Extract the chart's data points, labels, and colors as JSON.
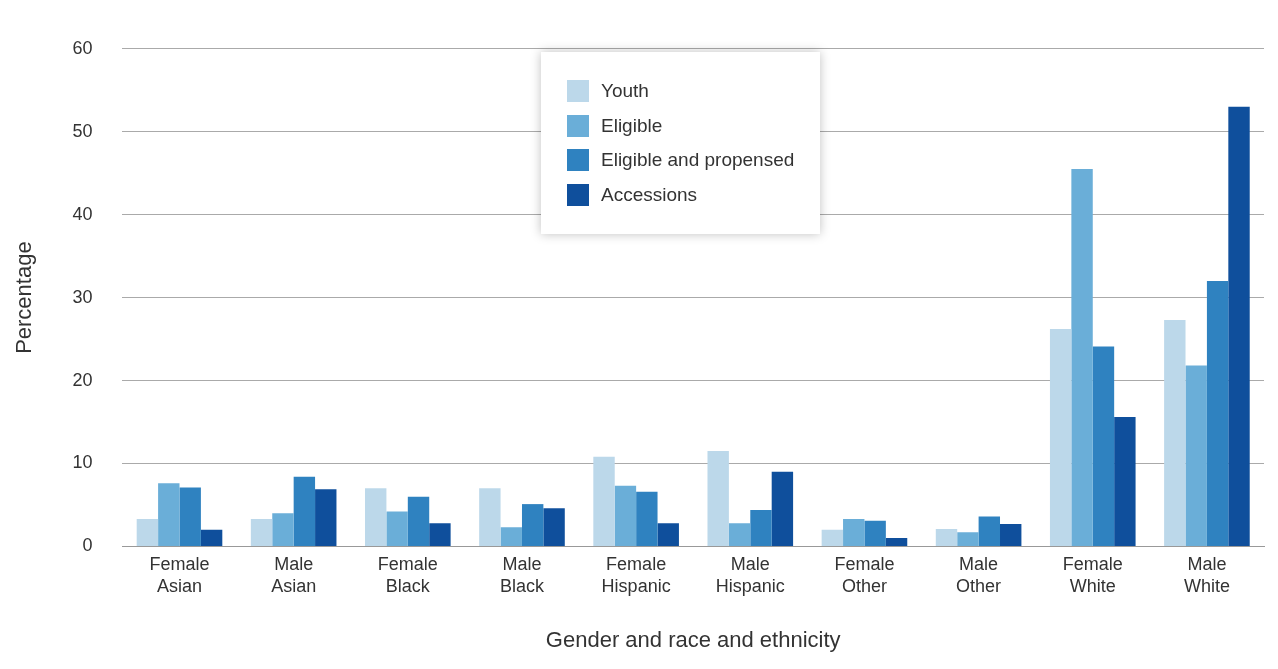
{
  "chart_data": {
    "type": "bar",
    "xlabel": "Gender and race and ethnicity",
    "ylabel": "Percentage",
    "categories": [
      "Female Asian",
      "Male Asian",
      "Female Black",
      "Male Black",
      "Female Hispanic",
      "Male Hispanic",
      "Female Other",
      "Male Other",
      "Female White",
      "Male White"
    ],
    "series": [
      {
        "name": "Youth",
        "color": "#bcd8ea",
        "values": [
          3.3,
          3.3,
          7.0,
          7.0,
          10.8,
          11.5,
          2.0,
          2.1,
          26.2,
          27.3
        ]
      },
      {
        "name": "Eligible",
        "color": "#6aaed8",
        "values": [
          7.6,
          4.0,
          4.2,
          2.3,
          7.3,
          2.8,
          3.3,
          1.7,
          45.5,
          21.8
        ]
      },
      {
        "name": "Eligible and propensed",
        "color": "#2f82c0",
        "values": [
          7.1,
          8.4,
          6.0,
          5.1,
          6.6,
          4.4,
          3.1,
          3.6,
          24.1,
          32.0
        ]
      },
      {
        "name": "Accessions",
        "color": "#0f4f9c",
        "values": [
          2.0,
          6.9,
          2.8,
          4.6,
          2.8,
          9.0,
          1.0,
          2.7,
          15.6,
          53.0
        ]
      }
    ],
    "ylim": [
      0,
      60
    ],
    "yticks": [
      0,
      10,
      20,
      30,
      40,
      50,
      60
    ],
    "grid": "y",
    "legend": "top"
  }
}
